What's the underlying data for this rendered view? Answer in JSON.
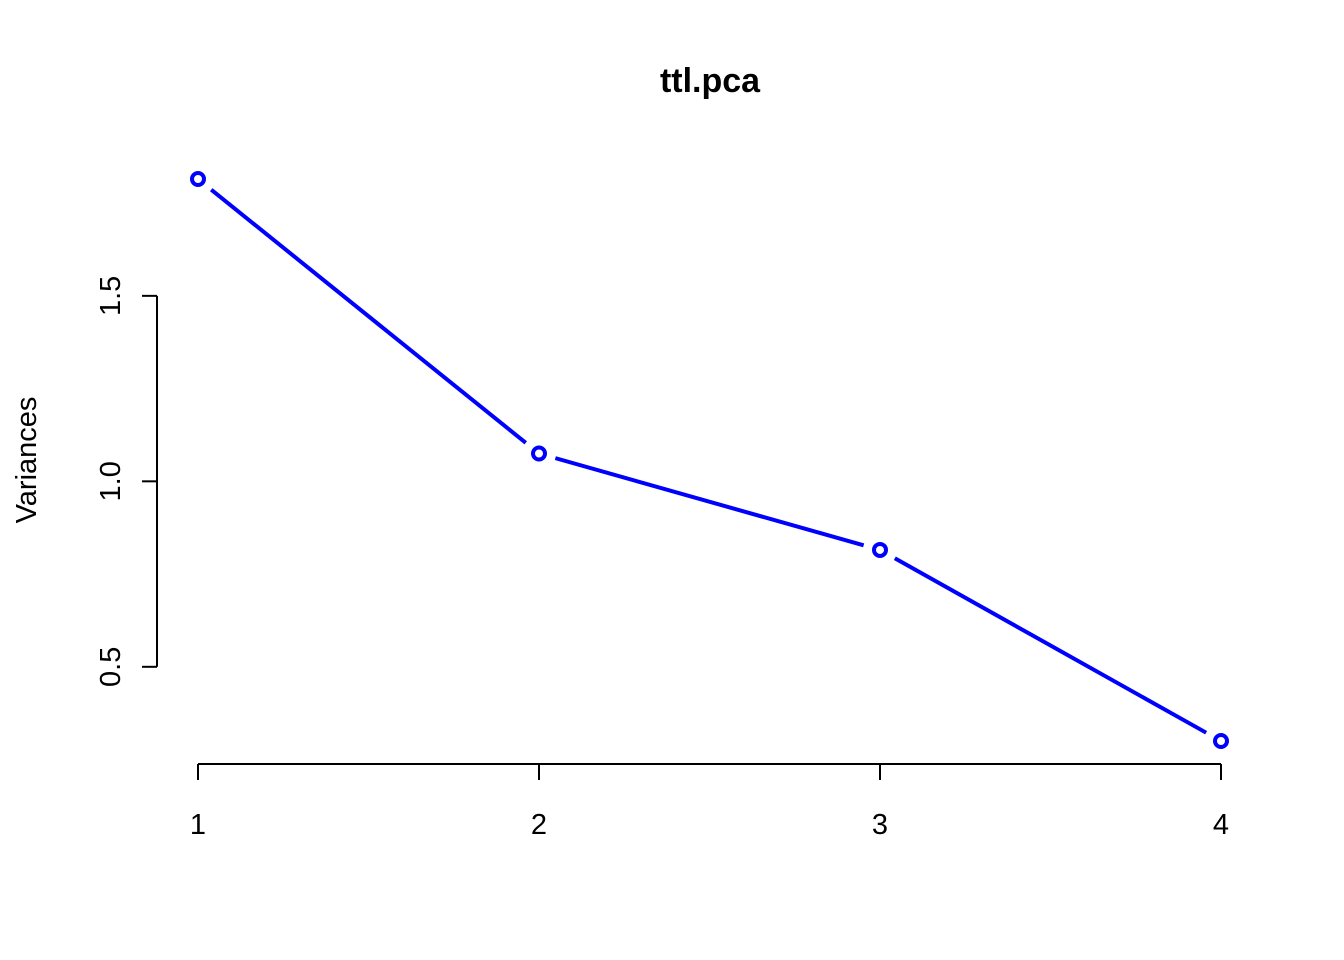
{
  "chart_data": {
    "type": "line",
    "title": "ttl.pca",
    "xlabel": "",
    "ylabel": "Variances",
    "x": [
      1,
      2,
      3,
      4
    ],
    "x_tick_labels": [
      "1",
      "2",
      "3",
      "4"
    ],
    "series": [
      {
        "values": [
          1.815,
          1.075,
          0.815,
          0.3
        ]
      }
    ],
    "y_ticks": [
      0.5,
      1.0,
      1.5
    ],
    "y_tick_labels": [
      "0.5",
      "1.0",
      "1.5"
    ],
    "xlim": [
      1,
      4
    ],
    "ylim": [
      0.3,
      1.815
    ],
    "grid": false,
    "line_color": "#0000ff",
    "marker": "open-circle"
  }
}
